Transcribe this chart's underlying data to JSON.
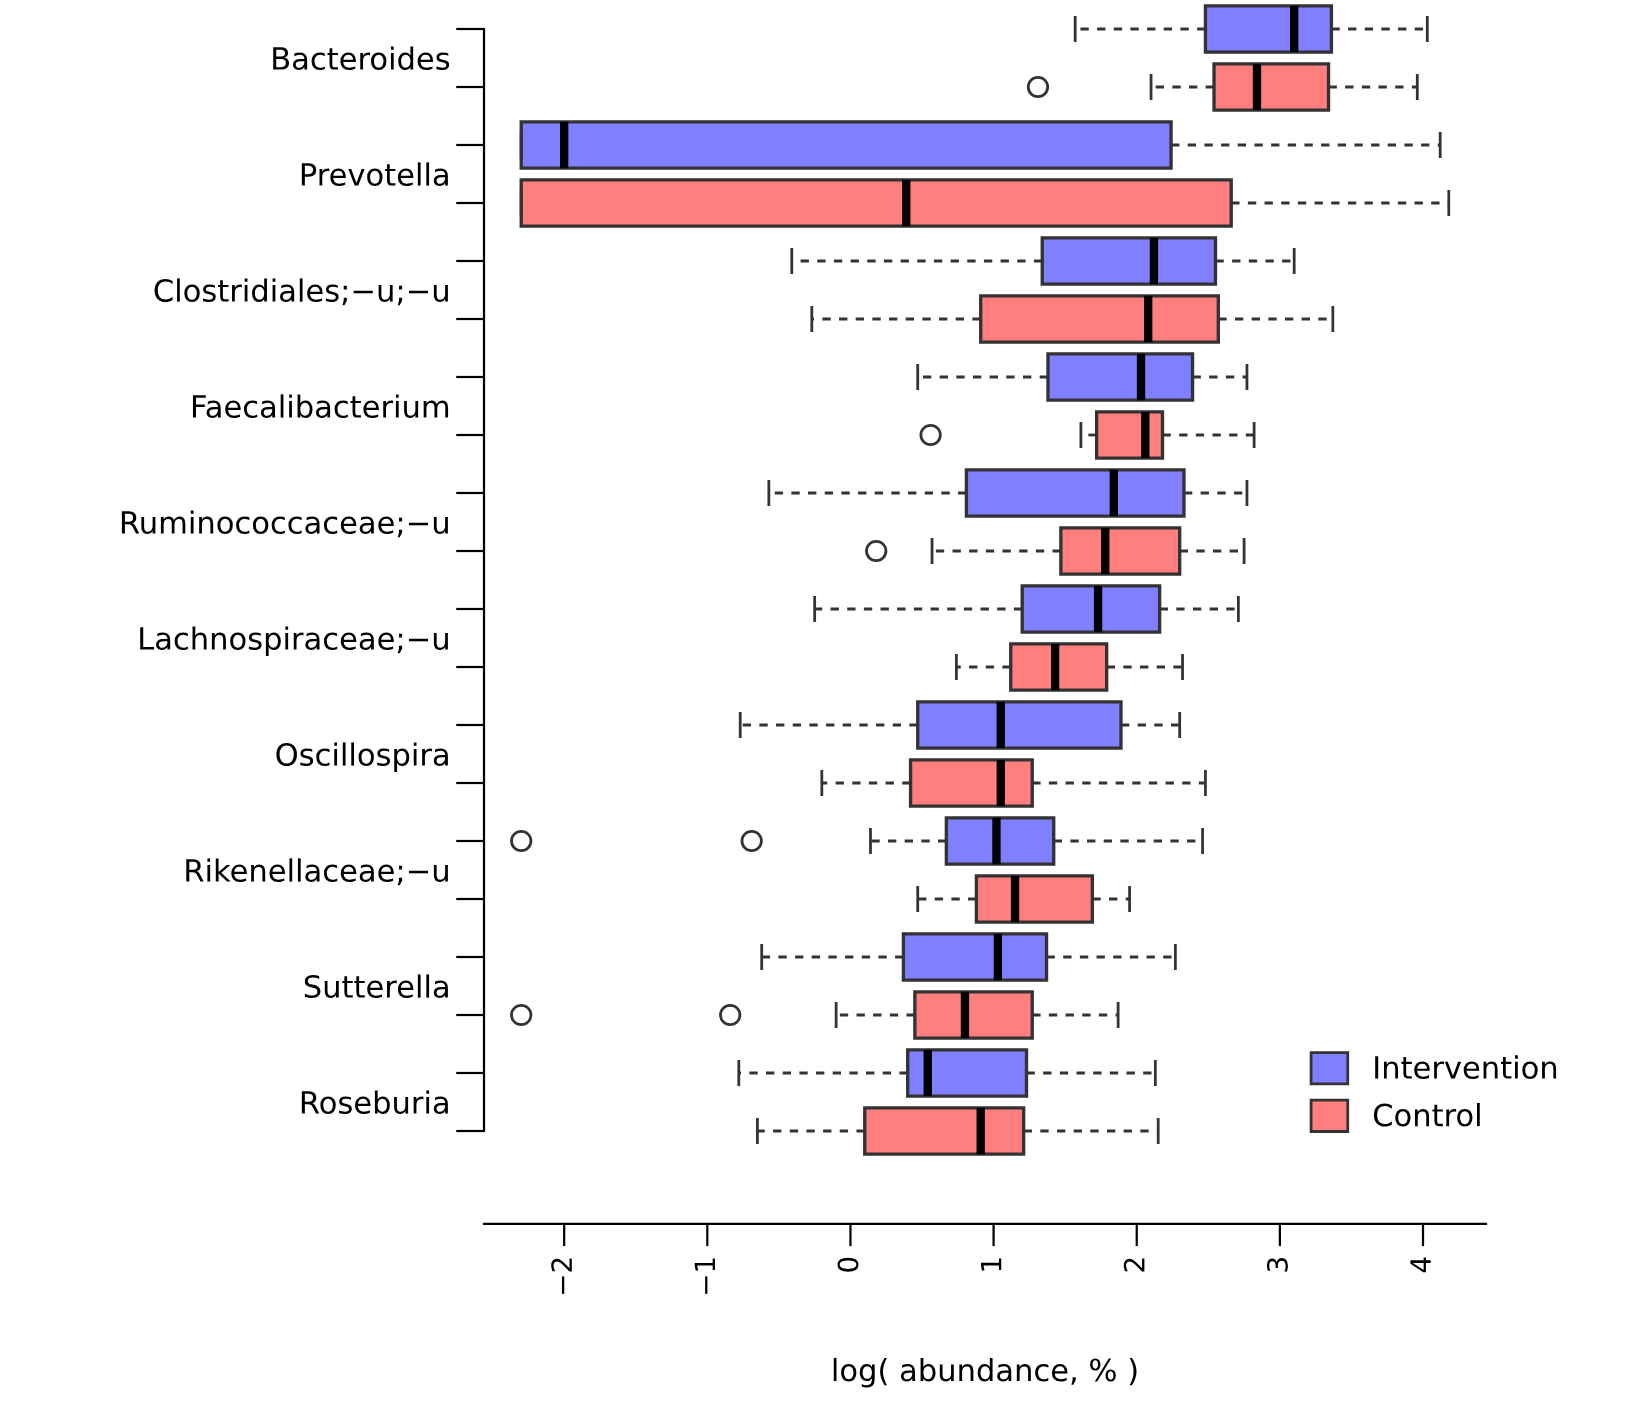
{
  "chart_data": {
    "type": "box",
    "orientation": "horizontal",
    "xlabel": "log( abundance, % )",
    "categories": [
      "Bacteroides",
      "Prevotella",
      "Clostridiales;−u;−u",
      "Faecalibacterium",
      "Ruminococcaceae;−u",
      "Lachnospiraceae;−u",
      "Oscillospira",
      "Rikenellaceae;−u",
      "Sutterella",
      "Roseburia"
    ],
    "xlim": [
      -2.56,
      4.44
    ],
    "xticks": [
      -2,
      -1,
      0,
      1,
      2,
      3,
      4
    ],
    "grid": false,
    "legend": "bottom right",
    "series": [
      {
        "name": "Intervention",
        "color": "#7f7fff",
        "boxes": [
          {
            "low": 1.57,
            "q1": 2.48,
            "median": 3.1,
            "q3": 3.36,
            "high": 4.03
          },
          {
            "low": -2.3,
            "q1": -2.3,
            "median": -2.0,
            "q3": 2.24,
            "high": 4.12
          },
          {
            "low": -0.41,
            "q1": 1.34,
            "median": 2.12,
            "q3": 2.55,
            "high": 3.1
          },
          {
            "low": 0.47,
            "q1": 1.38,
            "median": 2.03,
            "q3": 2.39,
            "high": 2.77
          },
          {
            "low": -0.57,
            "q1": 0.81,
            "median": 1.84,
            "q3": 2.33,
            "high": 2.77
          },
          {
            "low": -0.25,
            "q1": 1.2,
            "median": 1.73,
            "q3": 2.16,
            "high": 2.71
          },
          {
            "low": -0.77,
            "q1": 0.47,
            "median": 1.05,
            "q3": 1.89,
            "high": 2.3
          },
          {
            "low": 0.14,
            "q1": 0.67,
            "median": 1.02,
            "q3": 1.42,
            "high": 2.46,
            "outliers": [
              -2.3,
              -0.69
            ]
          },
          {
            "low": -0.62,
            "q1": 0.37,
            "median": 1.03,
            "q3": 1.37,
            "high": 2.27
          },
          {
            "low": -0.78,
            "q1": 0.4,
            "median": 0.54,
            "q3": 1.23,
            "high": 2.13
          }
        ]
      },
      {
        "name": "Control",
        "color": "#ff7f7f",
        "boxes": [
          {
            "low": 2.1,
            "q1": 2.54,
            "median": 2.84,
            "q3": 3.34,
            "high": 3.96,
            "outliers": [
              1.31
            ]
          },
          {
            "low": -2.3,
            "q1": -2.3,
            "median": 0.39,
            "q3": 2.66,
            "high": 4.18
          },
          {
            "low": -0.27,
            "q1": 0.91,
            "median": 2.08,
            "q3": 2.57,
            "high": 3.37
          },
          {
            "low": 1.61,
            "q1": 1.72,
            "median": 2.06,
            "q3": 2.18,
            "high": 2.82,
            "outliers": [
              0.56
            ]
          },
          {
            "low": 0.57,
            "q1": 1.47,
            "median": 1.78,
            "q3": 2.3,
            "high": 2.75,
            "outliers": [
              0.18
            ]
          },
          {
            "low": 0.74,
            "q1": 1.12,
            "median": 1.43,
            "q3": 1.79,
            "high": 2.32
          },
          {
            "low": -0.2,
            "q1": 0.42,
            "median": 1.05,
            "q3": 1.27,
            "high": 2.48
          },
          {
            "low": 0.47,
            "q1": 0.88,
            "median": 1.15,
            "q3": 1.69,
            "high": 1.95
          },
          {
            "low": -0.1,
            "q1": 0.45,
            "median": 0.8,
            "q3": 1.27,
            "high": 1.87,
            "outliers": [
              -2.3,
              -0.84
            ]
          },
          {
            "low": -0.65,
            "q1": 0.1,
            "median": 0.91,
            "q3": 1.21,
            "high": 2.15
          }
        ]
      }
    ]
  }
}
